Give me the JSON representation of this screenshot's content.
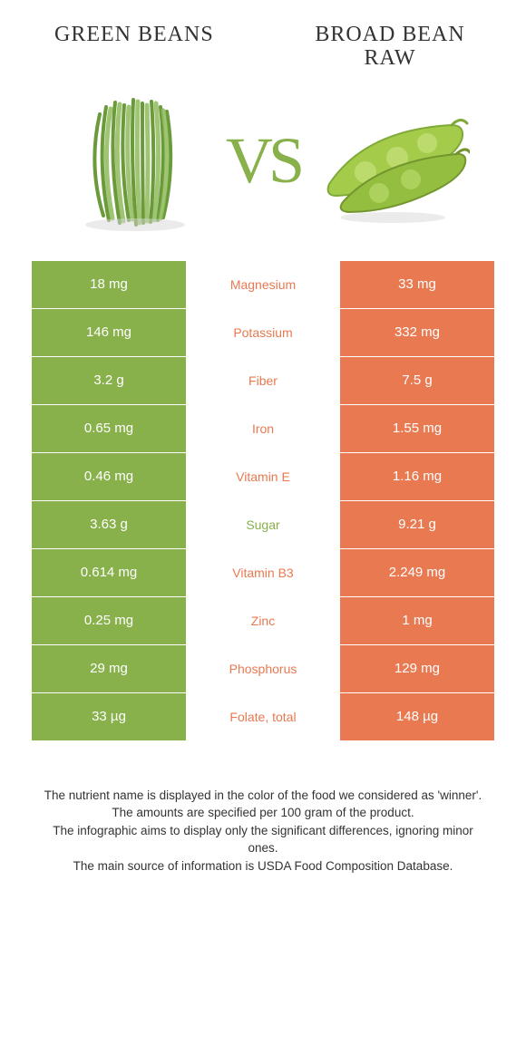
{
  "colors": {
    "left": "#88b04b",
    "right": "#e87950",
    "text": "#333333",
    "cell_text": "#ffffff",
    "background": "#ffffff"
  },
  "foods": {
    "left": {
      "name": "GREEN BEANS"
    },
    "right": {
      "name": "BROAD BEAN RAW"
    }
  },
  "vs": "VS",
  "rows": [
    {
      "left": "18 mg",
      "label": "Magnesium",
      "right": "33 mg",
      "winner": "right"
    },
    {
      "left": "146 mg",
      "label": "Potassium",
      "right": "332 mg",
      "winner": "right"
    },
    {
      "left": "3.2 g",
      "label": "Fiber",
      "right": "7.5 g",
      "winner": "right"
    },
    {
      "left": "0.65 mg",
      "label": "Iron",
      "right": "1.55 mg",
      "winner": "right"
    },
    {
      "left": "0.46 mg",
      "label": "Vitamin E",
      "right": "1.16 mg",
      "winner": "right"
    },
    {
      "left": "3.63 g",
      "label": "Sugar",
      "right": "9.21 g",
      "winner": "left"
    },
    {
      "left": "0.614 mg",
      "label": "Vitamin B3",
      "right": "2.249 mg",
      "winner": "right"
    },
    {
      "left": "0.25 mg",
      "label": "Zinc",
      "right": "1 mg",
      "winner": "right"
    },
    {
      "left": "29 mg",
      "label": "Phosphorus",
      "right": "129 mg",
      "winner": "right"
    },
    {
      "left": "33 µg",
      "label": "Folate, total",
      "right": "148 µg",
      "winner": "right"
    }
  ],
  "footer": [
    "The nutrient name is displayed in the color of the food we considered as 'winner'.",
    "The amounts are specified per 100 gram of the product.",
    "The infographic aims to display only the significant differences, ignoring minor ones.",
    "The main source of information is USDA Food Composition Database."
  ]
}
